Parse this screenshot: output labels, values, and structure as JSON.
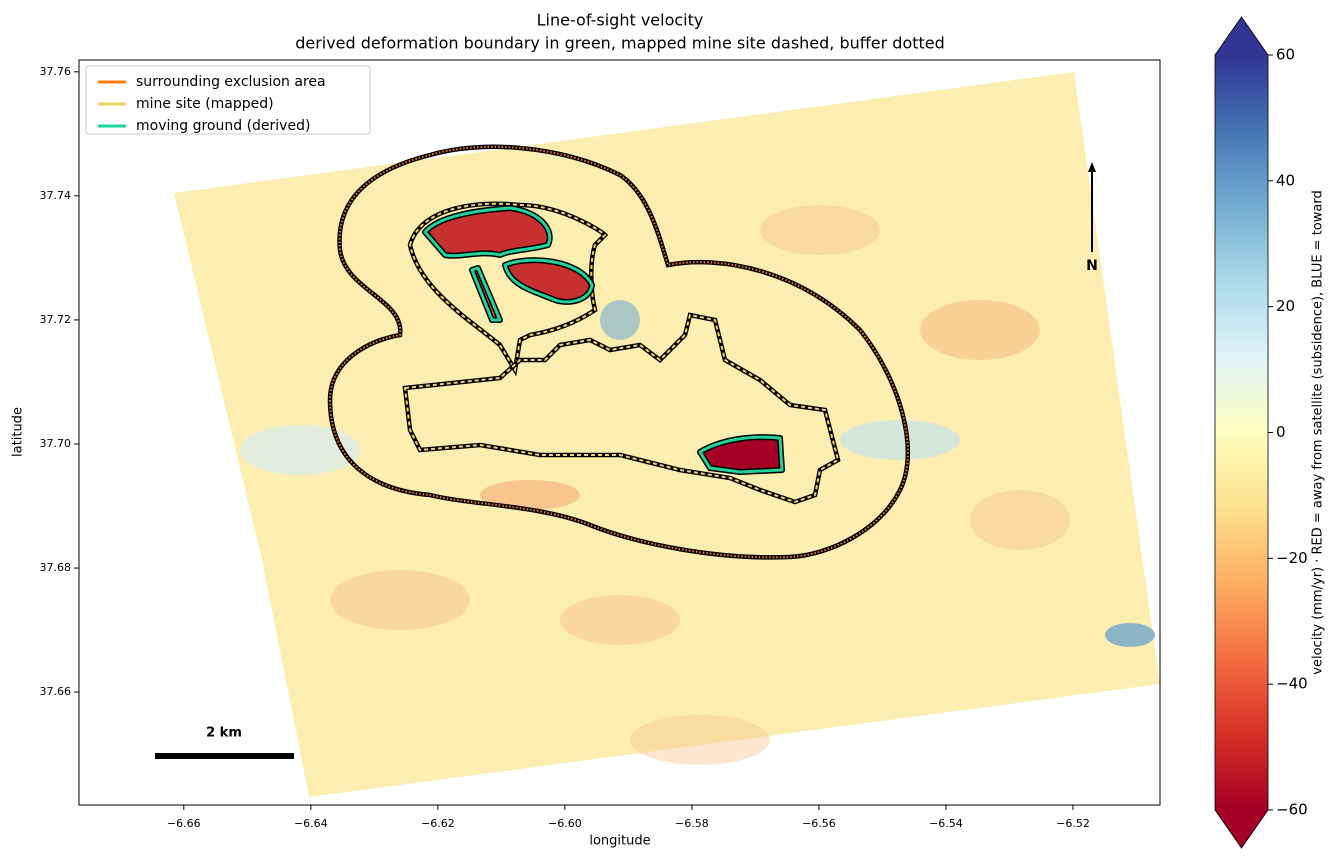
{
  "chart_data": {
    "type": "map",
    "title": "Line-of-sight velocity",
    "subtitle": "derived deformation boundary in green, mapped mine site dashed, buffer dotted",
    "xlabel": "longitude",
    "ylabel": "latitude",
    "xlim": [
      -6.6765,
      -6.5063
    ],
    "ylim": [
      37.6418,
      37.7619
    ],
    "xticks": [
      {
        "value": -6.66,
        "label": "−6.66"
      },
      {
        "value": -6.64,
        "label": "−6.64"
      },
      {
        "value": -6.62,
        "label": "−6.62"
      },
      {
        "value": -6.6,
        "label": "−6.60"
      },
      {
        "value": -6.58,
        "label": "−6.58"
      },
      {
        "value": -6.56,
        "label": "−6.56"
      },
      {
        "value": -6.54,
        "label": "−6.54"
      },
      {
        "value": -6.52,
        "label": "−6.52"
      }
    ],
    "yticks": [
      37.66,
      37.68,
      {
        "value": 37.7,
        "label": "37.70"
      },
      37.72,
      37.74,
      37.76
    ],
    "legend": [
      {
        "name": "surrounding exclusion area",
        "color": "#ff7f0e"
      },
      {
        "name": "mine site (mapped)",
        "color": "#f2d45c"
      },
      {
        "name": "moving ground (derived)",
        "color": "#1fd39a"
      }
    ],
    "legend_position": "upper left",
    "colorbar": {
      "label": "velocity (mm/yr)   ·   RED = away from satellite (subsidence),  BLUE = toward",
      "lim": [
        -60,
        60
      ],
      "ticks": [
        {
          "value": -60,
          "label": "−60"
        },
        {
          "value": -40,
          "label": "−40"
        },
        {
          "value": -20,
          "label": "−20"
        },
        0,
        20,
        40,
        60
      ],
      "colors": [
        "#a50026",
        "#d73027",
        "#f46d43",
        "#fdae61",
        "#fee090",
        "#ffffbf",
        "#e0f3f8",
        "#abd9e9",
        "#74add1",
        "#4575b4",
        "#313695"
      ]
    },
    "scale_bar": "2 km",
    "north_label": "N"
  }
}
